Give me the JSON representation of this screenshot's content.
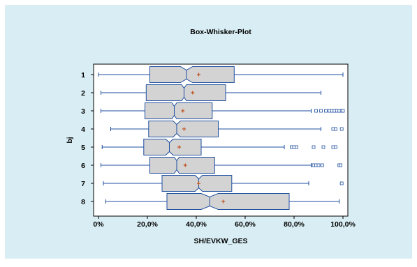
{
  "chart_data": {
    "type": "boxplot",
    "orientation": "horizontal",
    "title": "Box-Whisker-Plot",
    "xlabel": "SH/EVKW_GES",
    "ylabel": "bj",
    "xlim": [
      -0.02,
      1.02
    ],
    "xticks": [
      0,
      0.2,
      0.4,
      0.6,
      0.8,
      1.0
    ],
    "xtick_labels": [
      "0%",
      "20,0%",
      "40,0%",
      "60,0%",
      "80,0%",
      "100,0%"
    ],
    "grid": false,
    "colors": {
      "outer_background": "#d9eef4",
      "plot_background": "#ffffff",
      "box_fill": "#d3d3d3",
      "box_stroke": "#1f4fa0",
      "whisker": "#1f4fa0",
      "mean_marker": "#c0501a",
      "outlier_marker": "#1f4fa0"
    },
    "groups": [
      {
        "label": "1",
        "whisker_low": 0.0,
        "q1": 0.21,
        "median": 0.36,
        "q3": 0.555,
        "whisker_high": 1.0,
        "notch_low": 0.335,
        "notch_high": 0.385,
        "mean": 0.41,
        "outliers": []
      },
      {
        "label": "2",
        "whisker_low": 0.01,
        "q1": 0.195,
        "median": 0.35,
        "q3": 0.52,
        "whisker_high": 0.91,
        "notch_low": 0.34,
        "notch_high": 0.36,
        "mean": 0.385,
        "outliers": []
      },
      {
        "label": "3",
        "whisker_low": 0.01,
        "q1": 0.19,
        "median": 0.31,
        "q3": 0.465,
        "whisker_high": 0.87,
        "notch_low": 0.3,
        "notch_high": 0.32,
        "mean": 0.345,
        "outliers": [
          0.89,
          0.91,
          0.93,
          0.945,
          0.955,
          0.965,
          0.975,
          0.985,
          0.995,
          1.0
        ]
      },
      {
        "label": "4",
        "whisker_low": 0.05,
        "q1": 0.205,
        "median": 0.32,
        "q3": 0.49,
        "whisker_high": 0.91,
        "notch_low": 0.305,
        "notch_high": 0.335,
        "mean": 0.35,
        "outliers": [
          0.96,
          0.97,
          0.995
        ]
      },
      {
        "label": "5",
        "whisker_low": 0.015,
        "q1": 0.185,
        "median": 0.29,
        "q3": 0.42,
        "whisker_high": 0.76,
        "notch_low": 0.275,
        "notch_high": 0.305,
        "mean": 0.33,
        "outliers": [
          0.79,
          0.8,
          0.81,
          0.88,
          0.92,
          0.96,
          0.97
        ]
      },
      {
        "label": "6",
        "whisker_low": 0.01,
        "q1": 0.21,
        "median": 0.32,
        "q3": 0.475,
        "whisker_high": 0.87,
        "notch_low": 0.31,
        "notch_high": 0.33,
        "mean": 0.355,
        "outliers": [
          0.88,
          0.89,
          0.9,
          0.915,
          0.985,
          0.99
        ]
      },
      {
        "label": "7",
        "whisker_low": 0.02,
        "q1": 0.26,
        "median": 0.41,
        "q3": 0.545,
        "whisker_high": 0.86,
        "notch_low": 0.395,
        "notch_high": 0.425,
        "mean": 0.41,
        "outliers": [
          0.995
        ]
      },
      {
        "label": "8",
        "whisker_low": 0.03,
        "q1": 0.28,
        "median": 0.455,
        "q3": 0.78,
        "whisker_high": 0.985,
        "notch_low": 0.42,
        "notch_high": 0.49,
        "mean": 0.51,
        "outliers": []
      }
    ]
  }
}
